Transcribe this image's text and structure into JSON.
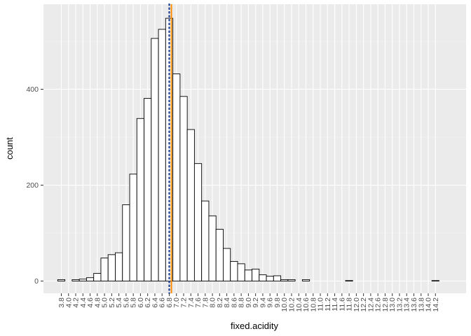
{
  "chart_data": {
    "type": "bar",
    "subtype": "histogram",
    "xlabel": "fixed.acidity",
    "ylabel": "count",
    "bin_width": 0.2,
    "x": [
      3.8,
      4.0,
      4.2,
      4.4,
      4.6,
      4.8,
      5.0,
      5.2,
      5.4,
      5.6,
      5.8,
      6.0,
      6.2,
      6.4,
      6.6,
      6.8,
      7.0,
      7.2,
      7.4,
      7.6,
      7.8,
      8.0,
      8.2,
      8.4,
      8.6,
      8.8,
      9.0,
      9.2,
      9.4,
      9.6,
      9.8,
      10.0,
      10.2,
      10.4,
      10.6,
      10.8,
      11.0,
      11.2,
      11.4,
      11.6,
      11.8,
      12.0,
      12.2,
      12.4,
      12.6,
      12.8,
      13.0,
      13.2,
      13.4,
      13.6,
      13.8,
      14.0,
      14.2
    ],
    "values": [
      3,
      0,
      3,
      4,
      7,
      16,
      48,
      55,
      59,
      159,
      223,
      339,
      381,
      506,
      525,
      548,
      432,
      385,
      316,
      245,
      167,
      136,
      108,
      68,
      41,
      36,
      23,
      25,
      13,
      10,
      11,
      3,
      3,
      0,
      3,
      0,
      0,
      0,
      0,
      0,
      1,
      0,
      0,
      0,
      0,
      0,
      0,
      0,
      0,
      0,
      0,
      0,
      1
    ],
    "xticks": [
      "3.8",
      "4.0",
      "4.2",
      "4.4",
      "4.6",
      "4.8",
      "5.0",
      "5.2",
      "5.4",
      "5.6",
      "5.8",
      "6.0",
      "6.2",
      "6.4",
      "6.6",
      "6.8",
      "7.0",
      "7.2",
      "7.4",
      "7.6",
      "7.8",
      "8.0",
      "8.2",
      "8.4",
      "8.6",
      "8.8",
      "9.0",
      "9.2",
      "9.4",
      "9.6",
      "9.8",
      "10.0",
      "10.2",
      "10.4",
      "10.6",
      "10.8",
      "11.0",
      "11.2",
      "11.4",
      "11.6",
      "11.8",
      "12.0",
      "12.2",
      "12.4",
      "12.6",
      "12.8",
      "13.0",
      "13.2",
      "13.4",
      "13.6",
      "13.8",
      "14.0",
      "14.2"
    ],
    "yticks": [
      0,
      200,
      400
    ],
    "ylim": [
      -28,
      570
    ],
    "grid": true,
    "colors": {
      "panel": "#ebebeb",
      "grid_major": "#ffffff",
      "grid_minor": "#f4f4f4",
      "bar_fill": "#ffffff",
      "bar_stroke": "#000000"
    },
    "annotations": [
      {
        "type": "vline",
        "x": 6.8,
        "style": "dotted",
        "color": "#1a3a8f"
      },
      {
        "type": "vline",
        "x": 6.86,
        "style": "solid",
        "color": "#ff8c00"
      }
    ]
  }
}
